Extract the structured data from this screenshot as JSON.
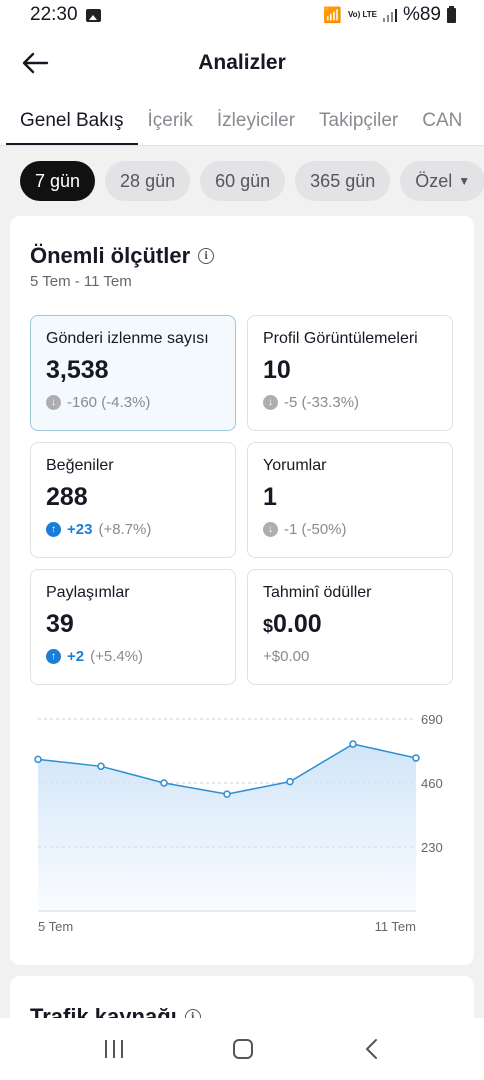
{
  "status": {
    "time": "22:30",
    "lte": "Vo) LTE",
    "battery": "%89"
  },
  "header": {
    "title": "Analizler"
  },
  "tabs": [
    {
      "label": "Genel Bakış",
      "active": true
    },
    {
      "label": "İçerik"
    },
    {
      "label": "İzleyiciler"
    },
    {
      "label": "Takipçiler"
    },
    {
      "label": "CAN"
    }
  ],
  "ranges": [
    {
      "label": "7 gün",
      "active": true
    },
    {
      "label": "28 gün"
    },
    {
      "label": "60 gün"
    },
    {
      "label": "365 gün"
    },
    {
      "label": "Özel"
    }
  ],
  "key_metrics": {
    "title": "Önemli ölçütler",
    "date_range": "5 Tem - 11 Tem",
    "items": [
      {
        "label": "Gönderi izlenme sayısı",
        "value": "3,538",
        "change": "",
        "change_detail": "-160 (-4.3%)",
        "direction": "down",
        "selected": true
      },
      {
        "label": "Profil Görüntülemeleri",
        "value": "10",
        "change": "",
        "change_detail": "-5 (-33.3%)",
        "direction": "down"
      },
      {
        "label": "Beğeniler",
        "value": "288",
        "change": "+23",
        "change_detail": "(+8.7%)",
        "direction": "up"
      },
      {
        "label": "Yorumlar",
        "value": "1",
        "change": "",
        "change_detail": "-1 (-50%)",
        "direction": "down"
      },
      {
        "label": "Paylaşımlar",
        "value": "39",
        "change": "+2",
        "change_detail": "(+5.4%)",
        "direction": "up"
      },
      {
        "label": "Tahminî ödüller",
        "value_prefix": "$",
        "value": "0.00",
        "change": "",
        "change_detail": "+$0.00",
        "direction": "none"
      }
    ]
  },
  "chart_data": {
    "type": "area",
    "x": [
      "5 Tem",
      "6 Tem",
      "7 Tem",
      "8 Tem",
      "9 Tem",
      "10 Tem",
      "11 Tem"
    ],
    "values": [
      545,
      520,
      460,
      420,
      465,
      600,
      550
    ],
    "ylim": [
      0,
      690
    ],
    "yticks": [
      "690",
      "460",
      "230"
    ],
    "xticks": [
      "5 Tem",
      "11 Tem"
    ],
    "grid": true,
    "line_color": "#2e8fd0",
    "fill_color": "#cfe4f8"
  },
  "traffic": {
    "title": "Trafik kaynağı"
  }
}
